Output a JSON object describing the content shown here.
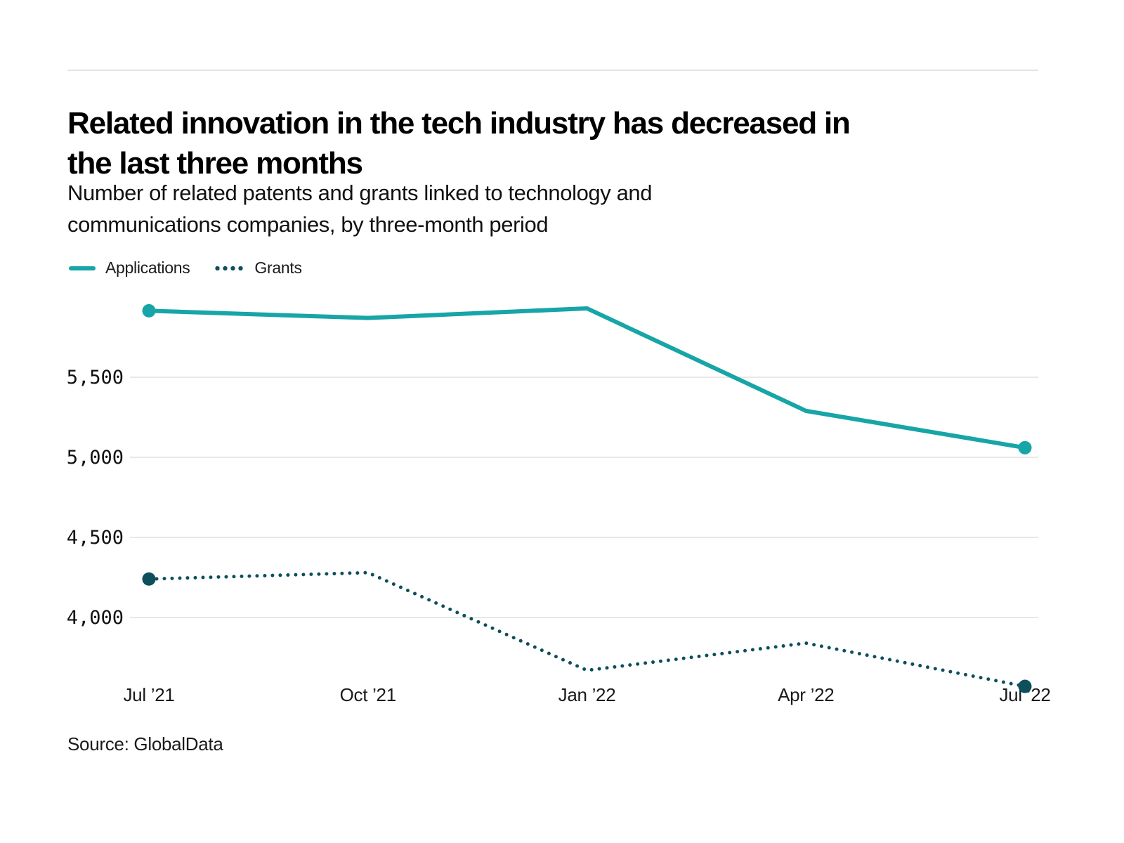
{
  "header": {
    "title": "Related innovation in the tech industry has decreased in the last three months",
    "title_lines": [
      "Related innovation in the tech industry has decreased in",
      "the last three months"
    ],
    "subtitle": "Number of related patents and grants linked to technology and communications companies, by three-month period",
    "subtitle_lines": [
      "Number of related patents and grants linked to technology and",
      "communications companies, by three-month period"
    ]
  },
  "legend": {
    "items": [
      {
        "label": "Applications",
        "style": "solid",
        "color": "#17a5a7"
      },
      {
        "label": "Grants",
        "style": "dotted",
        "color": "#0d4f5b"
      }
    ]
  },
  "source": {
    "text": "Source: GlobalData"
  },
  "chart_data": {
    "type": "line",
    "title": "Related innovation in the tech industry has decreased in the last three months",
    "subtitle": "Number of related patents and grants linked to technology and communications companies, by three-month period",
    "categories": [
      "Jul ’21",
      "Oct ’21",
      "Jan ’22",
      "Apr ’22",
      "Jul ’22"
    ],
    "series": [
      {
        "name": "Applications",
        "color": "#17a5a7",
        "line_style": "solid",
        "markers": "endpoints",
        "values": [
          5915,
          5870,
          5930,
          5290,
          5060
        ]
      },
      {
        "name": "Grants",
        "color": "#0d4f5b",
        "line_style": "dotted",
        "markers": "endpoints",
        "values": [
          4240,
          4280,
          3670,
          3840,
          3570
        ]
      }
    ],
    "yticks": [
      {
        "value": 5500,
        "label": "5,500"
      },
      {
        "value": 5000,
        "label": "5,000"
      },
      {
        "value": 4500,
        "label": "4,500"
      },
      {
        "value": 4000,
        "label": "4,000"
      }
    ],
    "ylim": [
      3500,
      6050
    ],
    "grid": true,
    "gridline_color": "#e8e8e8",
    "legend_position": "top-left",
    "source": "Source: GlobalData"
  }
}
